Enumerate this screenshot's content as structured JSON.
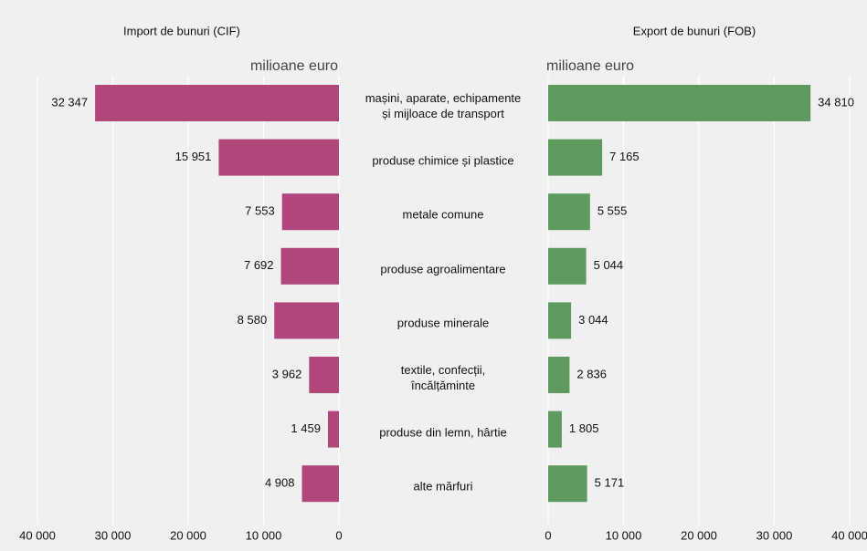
{
  "chart_data": [
    {
      "type": "bar",
      "orientation": "horizontal",
      "x_reversed": true,
      "title": "Import de bunuri (CIF)",
      "unit": "milioane euro",
      "color": "#b0467a",
      "categories": [
        "mașini, aparate, echipamente\nși mijloace de transport",
        "produse chimice și plastice",
        "metale comune",
        "produse agroalimentare",
        "produse minerale",
        "textile, confecții,\nîncălțăminte",
        "produse din lemn, hârtie",
        "alte mărfuri"
      ],
      "values": [
        32347,
        15951,
        7553,
        7692,
        8580,
        3962,
        1459,
        4908
      ],
      "value_labels": [
        "32 347",
        "15 951",
        "7 553",
        "7 692",
        "8 580",
        "3 962",
        "1 459",
        "4 908"
      ],
      "xlim": [
        0,
        40000
      ],
      "xticks": [
        {
          "value": 40000,
          "label": "40 000"
        },
        {
          "value": 30000,
          "label": "30 000"
        },
        {
          "value": 20000,
          "label": "20 000"
        },
        {
          "value": 10000,
          "label": "10 000"
        },
        0
      ],
      "grid": true
    },
    {
      "type": "bar",
      "orientation": "horizontal",
      "x_reversed": false,
      "title": "Export de bunuri (FOB)",
      "unit": "milioane euro",
      "color": "#5e9a5e",
      "values": [
        34810,
        7165,
        5555,
        5044,
        3044,
        2836,
        1805,
        5171
      ],
      "value_labels": [
        "34 810",
        "7 165",
        "5 555",
        "5 044",
        "3 044",
        "2 836",
        "1 805",
        "5 171"
      ],
      "xlim": [
        0,
        40000
      ],
      "xticks": [
        0,
        {
          "value": 10000,
          "label": "10 000"
        },
        {
          "value": 20000,
          "label": "20 000"
        },
        {
          "value": 30000,
          "label": "30 000"
        },
        {
          "value": 40000,
          "label": "40 000"
        }
      ],
      "grid": true
    }
  ]
}
